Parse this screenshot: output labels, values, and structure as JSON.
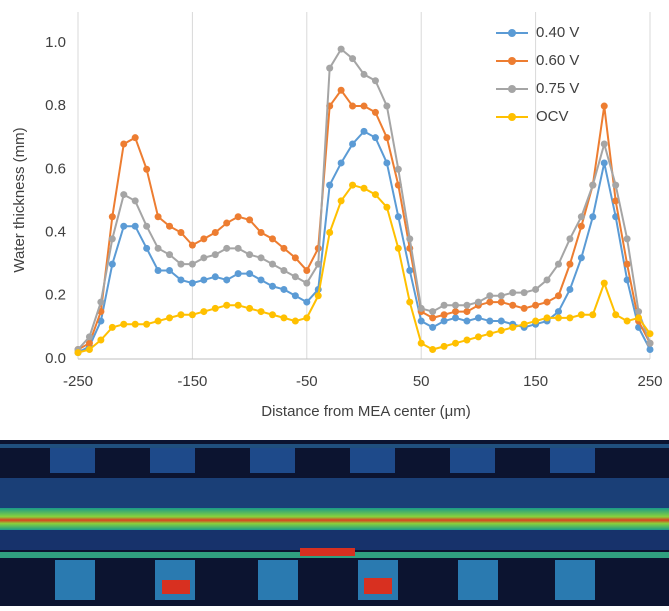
{
  "chart_data": {
    "type": "line",
    "x_label": "Distance from MEA center (μm)",
    "y_label": "Water thickness (mm)",
    "x": [
      -250,
      -240,
      -230,
      -220,
      -210,
      -200,
      -190,
      -180,
      -170,
      -160,
      -150,
      -140,
      -130,
      -120,
      -110,
      -100,
      -90,
      -80,
      -70,
      -60,
      -50,
      -40,
      -30,
      -20,
      -10,
      0,
      10,
      20,
      30,
      40,
      50,
      60,
      70,
      80,
      90,
      100,
      110,
      120,
      130,
      140,
      150,
      160,
      170,
      180,
      190,
      200,
      210,
      220,
      230,
      240,
      250
    ],
    "series": [
      {
        "name": "0.40 V",
        "color": "#5b9bd5",
        "values": [
          0.02,
          0.04,
          0.12,
          0.3,
          0.42,
          0.42,
          0.35,
          0.28,
          0.28,
          0.25,
          0.24,
          0.25,
          0.26,
          0.25,
          0.27,
          0.27,
          0.25,
          0.23,
          0.22,
          0.2,
          0.18,
          0.22,
          0.55,
          0.62,
          0.68,
          0.72,
          0.7,
          0.62,
          0.45,
          0.28,
          0.12,
          0.1,
          0.12,
          0.13,
          0.12,
          0.13,
          0.12,
          0.12,
          0.11,
          0.1,
          0.11,
          0.12,
          0.15,
          0.22,
          0.32,
          0.45,
          0.62,
          0.45,
          0.25,
          0.1,
          0.03
        ]
      },
      {
        "name": "0.60 V",
        "color": "#ed7d31",
        "values": [
          0.03,
          0.05,
          0.15,
          0.45,
          0.68,
          0.7,
          0.6,
          0.45,
          0.42,
          0.4,
          0.36,
          0.38,
          0.4,
          0.43,
          0.45,
          0.44,
          0.4,
          0.38,
          0.35,
          0.32,
          0.28,
          0.35,
          0.8,
          0.85,
          0.8,
          0.8,
          0.78,
          0.7,
          0.55,
          0.35,
          0.15,
          0.13,
          0.14,
          0.15,
          0.15,
          0.17,
          0.18,
          0.18,
          0.17,
          0.16,
          0.17,
          0.18,
          0.2,
          0.3,
          0.42,
          0.55,
          0.8,
          0.5,
          0.3,
          0.12,
          0.05
        ]
      },
      {
        "name": "0.75 V",
        "color": "#a5a5a5",
        "values": [
          0.03,
          0.07,
          0.18,
          0.38,
          0.52,
          0.5,
          0.42,
          0.35,
          0.33,
          0.3,
          0.3,
          0.32,
          0.33,
          0.35,
          0.35,
          0.33,
          0.32,
          0.3,
          0.28,
          0.26,
          0.24,
          0.3,
          0.92,
          0.98,
          0.95,
          0.9,
          0.88,
          0.8,
          0.6,
          0.38,
          0.16,
          0.15,
          0.17,
          0.17,
          0.17,
          0.18,
          0.2,
          0.2,
          0.21,
          0.21,
          0.22,
          0.25,
          0.3,
          0.38,
          0.45,
          0.55,
          0.68,
          0.55,
          0.38,
          0.15,
          0.05
        ]
      },
      {
        "name": "OCV",
        "color": "#ffc000",
        "values": [
          0.02,
          0.03,
          0.06,
          0.1,
          0.11,
          0.11,
          0.11,
          0.12,
          0.13,
          0.14,
          0.14,
          0.15,
          0.16,
          0.17,
          0.17,
          0.16,
          0.15,
          0.14,
          0.13,
          0.12,
          0.13,
          0.2,
          0.4,
          0.5,
          0.55,
          0.54,
          0.52,
          0.48,
          0.35,
          0.18,
          0.05,
          0.03,
          0.04,
          0.05,
          0.06,
          0.07,
          0.08,
          0.09,
          0.1,
          0.11,
          0.12,
          0.13,
          0.13,
          0.13,
          0.14,
          0.14,
          0.24,
          0.14,
          0.12,
          0.13,
          0.08
        ]
      }
    ],
    "xlim": [
      -250,
      250
    ],
    "xticks": [
      -250,
      -150,
      -50,
      50,
      150,
      250
    ],
    "ylim": [
      0,
      1.05
    ],
    "yticks": [
      {
        "value": 0,
        "label": "0.0"
      },
      0.2,
      0.4,
      0.6,
      0.8,
      {
        "value": 1,
        "label": "1.0"
      }
    ],
    "grid": "x",
    "legend": "top-right"
  }
}
